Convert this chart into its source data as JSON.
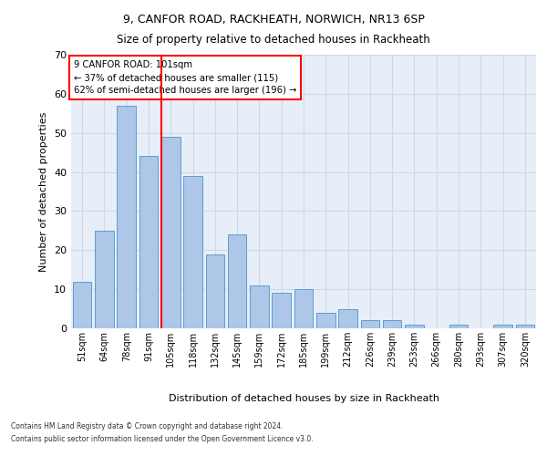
{
  "title1": "9, CANFOR ROAD, RACKHEATH, NORWICH, NR13 6SP",
  "title2": "Size of property relative to detached houses in Rackheath",
  "xlabel": "Distribution of detached houses by size in Rackheath",
  "ylabel": "Number of detached properties",
  "categories": [
    "51sqm",
    "64sqm",
    "78sqm",
    "91sqm",
    "105sqm",
    "118sqm",
    "132sqm",
    "145sqm",
    "159sqm",
    "172sqm",
    "185sqm",
    "199sqm",
    "212sqm",
    "226sqm",
    "239sqm",
    "253sqm",
    "266sqm",
    "280sqm",
    "293sqm",
    "307sqm",
    "320sqm"
  ],
  "values": [
    12,
    25,
    57,
    44,
    49,
    39,
    19,
    24,
    11,
    9,
    10,
    4,
    5,
    2,
    2,
    1,
    0,
    1,
    0,
    1,
    1
  ],
  "bar_color": "#aec6e8",
  "bar_edge_color": "#5a9fd4",
  "grid_color": "#d0d8e8",
  "background_color": "#e8eef8",
  "vline_x_index": 4,
  "vline_color": "red",
  "annotation_text": "9 CANFOR ROAD: 101sqm\n← 37% of detached houses are smaller (115)\n62% of semi-detached houses are larger (196) →",
  "annotation_box_color": "white",
  "annotation_box_edge": "red",
  "ylim": [
    0,
    70
  ],
  "yticks": [
    0,
    10,
    20,
    30,
    40,
    50,
    60,
    70
  ],
  "footer1": "Contains HM Land Registry data © Crown copyright and database right 2024.",
  "footer2": "Contains public sector information licensed under the Open Government Licence v3.0."
}
